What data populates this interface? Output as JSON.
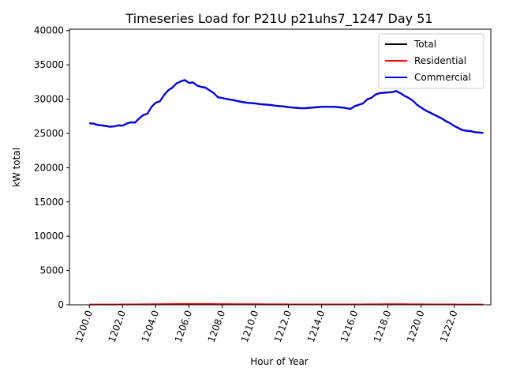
{
  "chart_data": {
    "type": "line",
    "title": "Timeseries Load for P21U p21uhs7_1247  Day 51",
    "xlabel": "Hour of Year",
    "ylabel": "kW total",
    "xlim": [
      1198.8,
      1224.2
    ],
    "ylim": [
      0,
      40200
    ],
    "x_ticks": [
      1200,
      1202,
      1204,
      1206,
      1208,
      1210,
      1212,
      1214,
      1216,
      1218,
      1220,
      1222
    ],
    "x_tick_labels": [
      "1200.0",
      "1202.0",
      "1204.0",
      "1206.0",
      "1208.0",
      "1210.0",
      "1212.0",
      "1214.0",
      "1216.0",
      "1218.0",
      "1220.0",
      "1222.0"
    ],
    "y_ticks": [
      0,
      5000,
      10000,
      15000,
      20000,
      25000,
      30000,
      35000,
      40000
    ],
    "y_tick_labels": [
      "0",
      "5000",
      "10000",
      "15000",
      "20000",
      "25000",
      "30000",
      "35000",
      "40000"
    ],
    "legend_position": "top-right",
    "x": [
      1200.0,
      1200.25,
      1200.5,
      1200.75,
      1201.0,
      1201.25,
      1201.5,
      1201.75,
      1202.0,
      1202.25,
      1202.5,
      1202.75,
      1203.0,
      1203.25,
      1203.5,
      1203.75,
      1204.0,
      1204.25,
      1204.5,
      1204.75,
      1205.0,
      1205.25,
      1205.5,
      1205.75,
      1206.0,
      1206.25,
      1206.5,
      1206.75,
      1207.0,
      1207.25,
      1207.5,
      1207.75,
      1208.0,
      1208.25,
      1208.5,
      1208.75,
      1209.0,
      1209.25,
      1209.5,
      1209.75,
      1210.0,
      1210.25,
      1210.5,
      1210.75,
      1211.0,
      1211.25,
      1211.5,
      1211.75,
      1212.0,
      1212.25,
      1212.5,
      1212.75,
      1213.0,
      1213.25,
      1213.5,
      1213.75,
      1214.0,
      1214.25,
      1214.5,
      1214.75,
      1215.0,
      1215.25,
      1215.5,
      1215.75,
      1216.0,
      1216.25,
      1216.5,
      1216.75,
      1217.0,
      1217.25,
      1217.5,
      1217.75,
      1218.0,
      1218.25,
      1218.5,
      1218.75,
      1219.0,
      1219.25,
      1219.5,
      1219.75,
      1220.0,
      1220.25,
      1220.5,
      1220.75,
      1221.0,
      1221.25,
      1221.5,
      1221.75,
      1222.0,
      1222.25,
      1222.5,
      1222.75,
      1223.0,
      1223.25,
      1223.5,
      1223.75
    ],
    "series": [
      {
        "name": "Total",
        "color": "#000000",
        "values": [
          26500,
          26450,
          26250,
          26200,
          26100,
          26000,
          26050,
          26200,
          26150,
          26450,
          26650,
          26600,
          27200,
          27700,
          27900,
          28900,
          29500,
          29700,
          30600,
          31300,
          31700,
          32300,
          32600,
          32800,
          32400,
          32450,
          32000,
          31800,
          31700,
          31300,
          30900,
          30300,
          30200,
          30050,
          29950,
          29850,
          29700,
          29600,
          29500,
          29450,
          29400,
          29300,
          29250,
          29200,
          29150,
          29050,
          29000,
          28950,
          28850,
          28800,
          28750,
          28700,
          28700,
          28750,
          28800,
          28850,
          28900,
          28900,
          28900,
          28900,
          28850,
          28800,
          28700,
          28600,
          29000,
          29200,
          29400,
          30000,
          30200,
          30700,
          30900,
          30950,
          31000,
          31050,
          31200,
          30900,
          30500,
          30200,
          29800,
          29200,
          28800,
          28400,
          28100,
          27800,
          27500,
          27200,
          26800,
          26500,
          26100,
          25800,
          25500,
          25400,
          25350,
          25200,
          25150,
          25100
        ]
      },
      {
        "name": "Residential",
        "color": "#ff0000",
        "values": [
          50,
          50,
          50,
          50,
          50,
          50,
          50,
          50,
          55,
          55,
          60,
          60,
          65,
          70,
          75,
          80,
          85,
          90,
          95,
          100,
          105,
          110,
          115,
          120,
          120,
          120,
          115,
          115,
          110,
          110,
          105,
          100,
          100,
          95,
          95,
          90,
          90,
          85,
          85,
          80,
          80,
          80,
          75,
          75,
          75,
          70,
          70,
          70,
          65,
          65,
          65,
          60,
          60,
          60,
          60,
          60,
          60,
          60,
          60,
          60,
          60,
          60,
          60,
          60,
          60,
          65,
          65,
          70,
          70,
          75,
          75,
          80,
          80,
          80,
          80,
          80,
          80,
          75,
          75,
          70,
          70,
          65,
          65,
          60,
          60,
          60,
          55,
          55,
          55,
          50,
          50,
          50,
          50,
          50,
          50,
          50
        ]
      },
      {
        "name": "Commercial",
        "color": "#0000ff",
        "values": [
          26450,
          26400,
          26200,
          26150,
          26050,
          25950,
          26000,
          26150,
          26100,
          26400,
          26600,
          26550,
          27150,
          27650,
          27850,
          28850,
          29450,
          29650,
          30550,
          31250,
          31650,
          32250,
          32550,
          32750,
          32350,
          32400,
          31950,
          31750,
          31650,
          31250,
          30850,
          30250,
          30150,
          30000,
          29900,
          29800,
          29650,
          29550,
          29450,
          29400,
          29350,
          29250,
          29200,
          29150,
          29100,
          29000,
          28950,
          28900,
          28800,
          28750,
          28700,
          28650,
          28650,
          28700,
          28750,
          28800,
          28850,
          28850,
          28850,
          28850,
          28800,
          28750,
          28650,
          28550,
          28950,
          29150,
          29350,
          29950,
          30150,
          30650,
          30850,
          30900,
          30950,
          31000,
          31150,
          30850,
          30450,
          30150,
          29750,
          29150,
          28750,
          28350,
          28050,
          27750,
          27450,
          27150,
          26750,
          26450,
          26050,
          25750,
          25450,
          25350,
          25300,
          25150,
          25100,
          25050
        ]
      }
    ]
  }
}
